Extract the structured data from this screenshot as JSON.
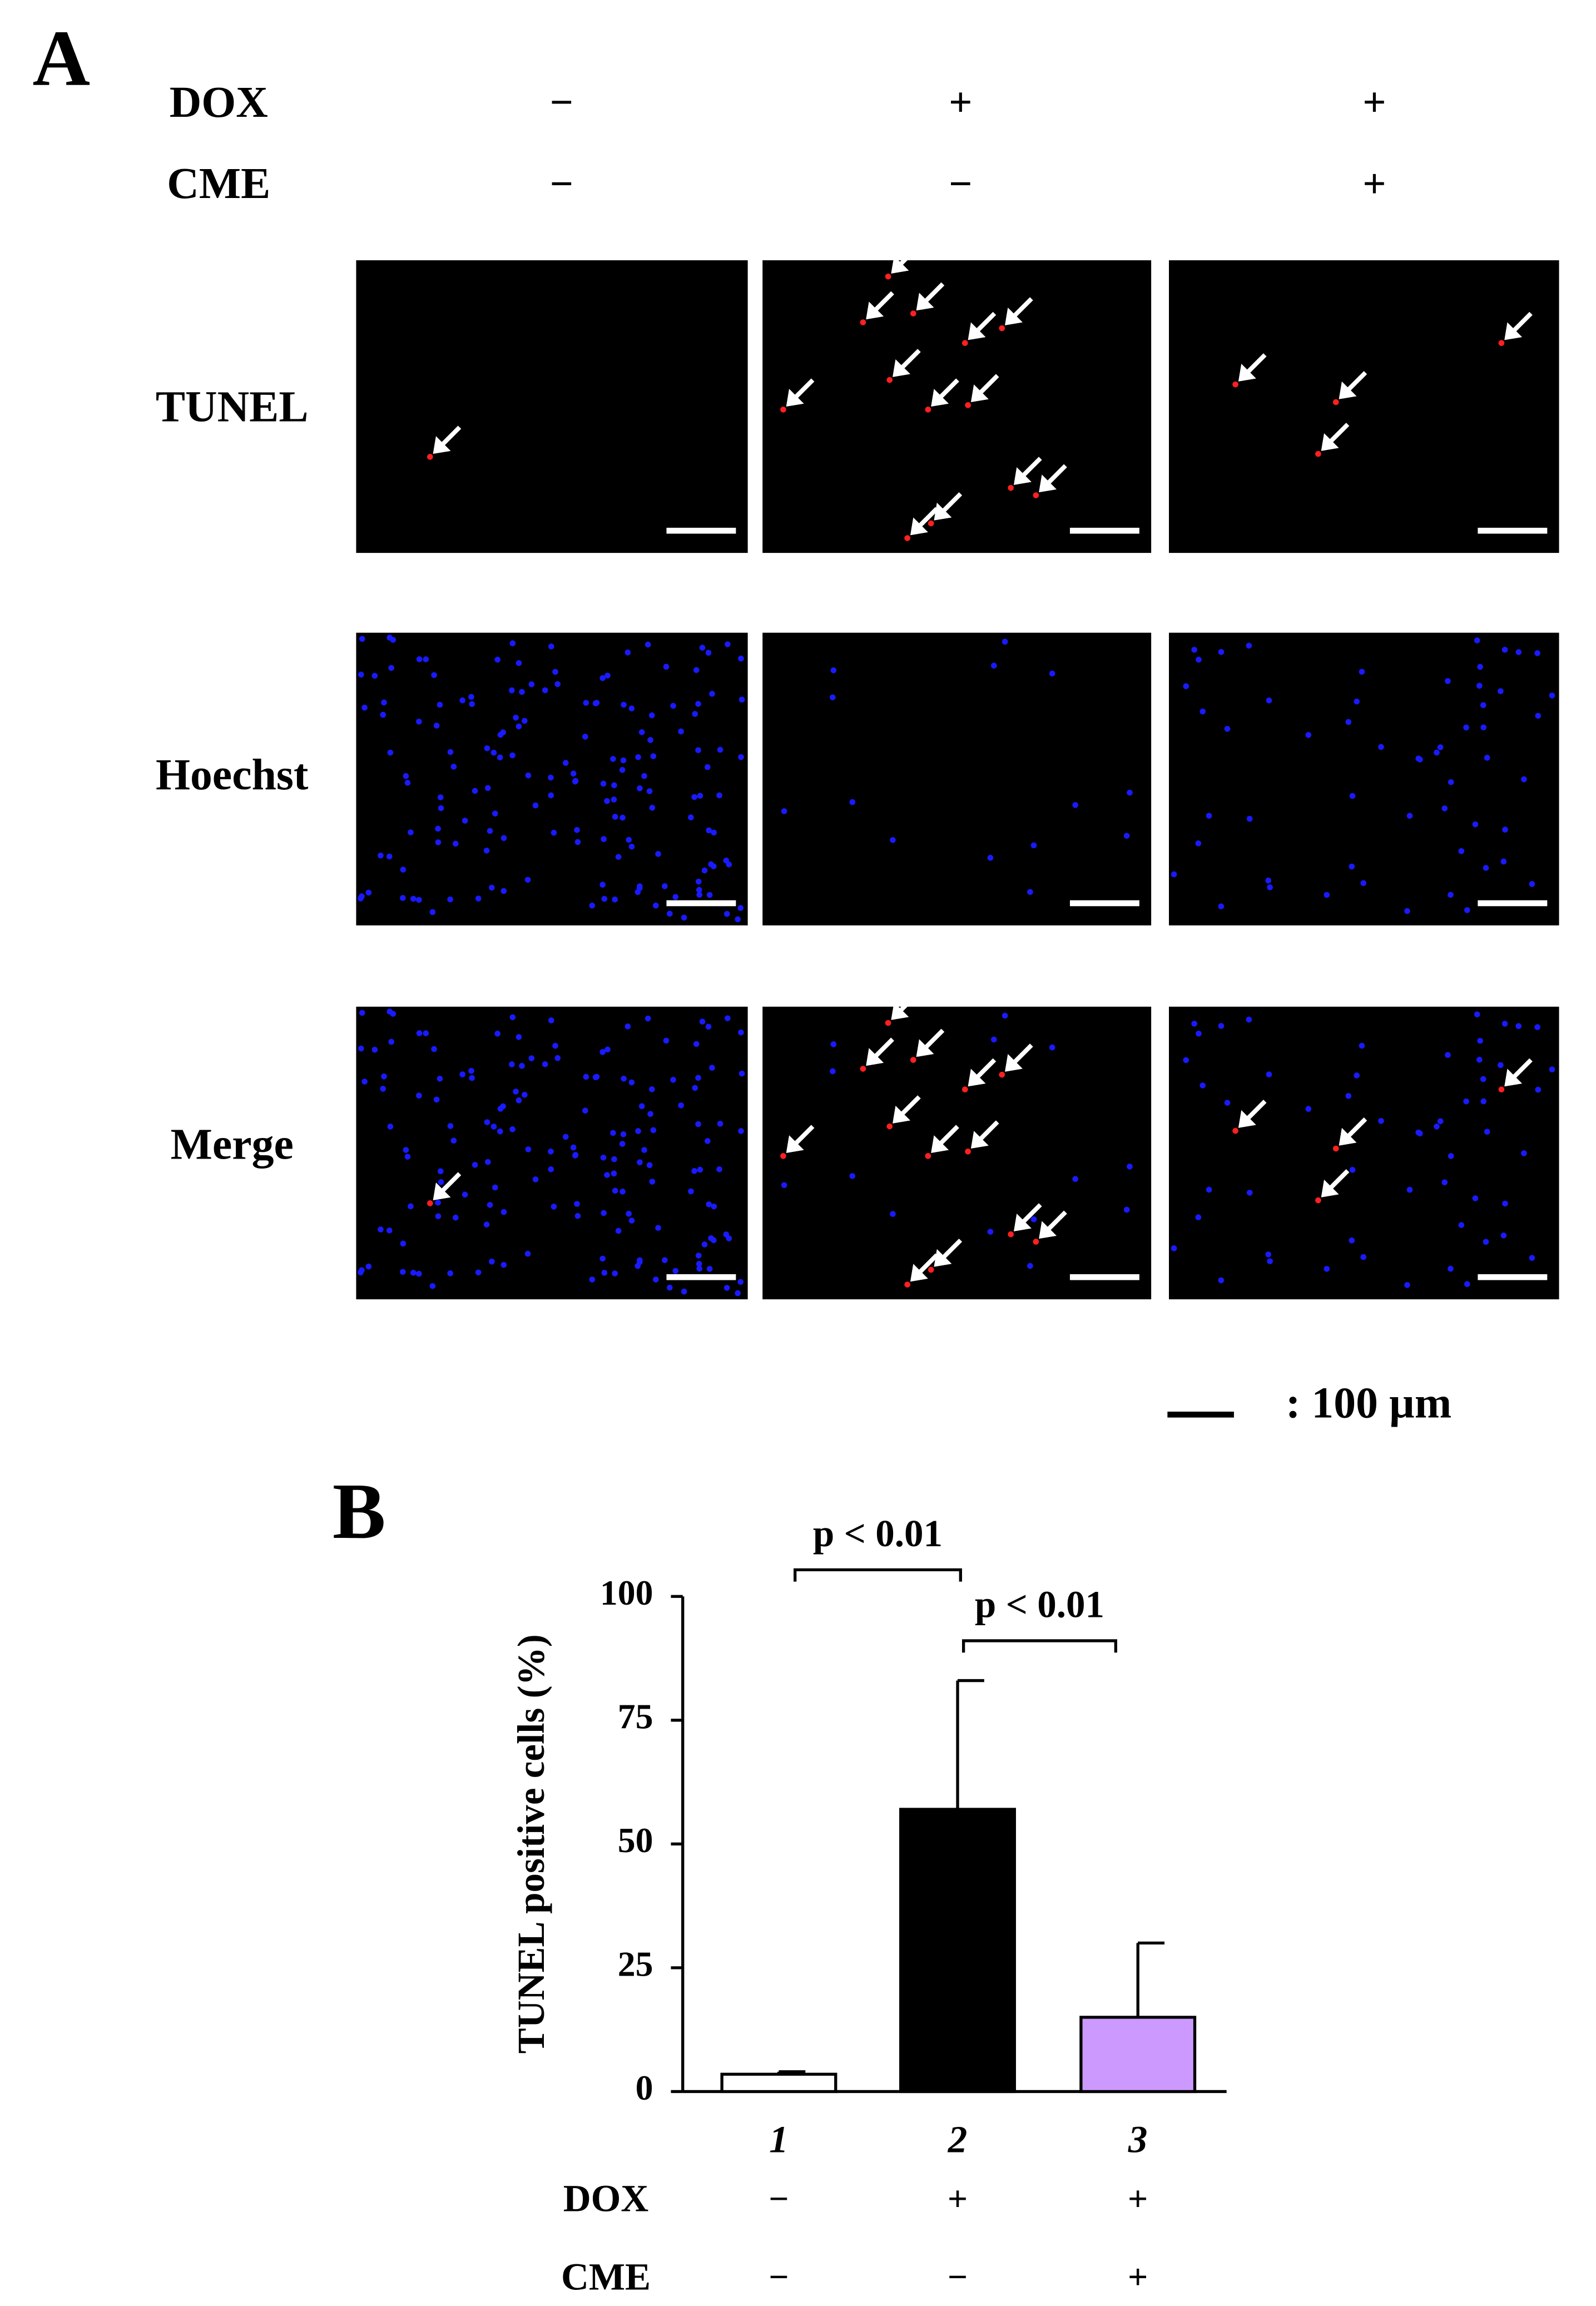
{
  "panel_a": {
    "label": "A",
    "conditions": [
      {
        "name": "DOX",
        "values": [
          "−",
          "+",
          "+"
        ]
      },
      {
        "name": "CME",
        "values": [
          "−",
          "−",
          "+"
        ]
      }
    ],
    "rows": [
      "TUNEL",
      "Hoechst",
      "Merge"
    ],
    "scale_bar": ": 100 µm"
  },
  "chart_data": {
    "type": "bar",
    "panel_label": "B",
    "ylabel": "TUNEL positive cells (%)",
    "categories": [
      "1",
      "2",
      "3"
    ],
    "values": [
      3.5,
      57,
      15
    ],
    "errors": [
      0.5,
      26,
      15
    ],
    "colors": [
      "#ffffff",
      "#000000",
      "#cc99ff"
    ],
    "ylim": [
      0,
      100
    ],
    "yticks": [
      0,
      25,
      50,
      75,
      100
    ],
    "conditions": [
      {
        "name": "DOX",
        "values": [
          "−",
          "+",
          "+"
        ]
      },
      {
        "name": "CME",
        "values": [
          "−",
          "−",
          "+"
        ]
      }
    ],
    "annotations": [
      "p < 0.01",
      "p < 0.01"
    ]
  }
}
